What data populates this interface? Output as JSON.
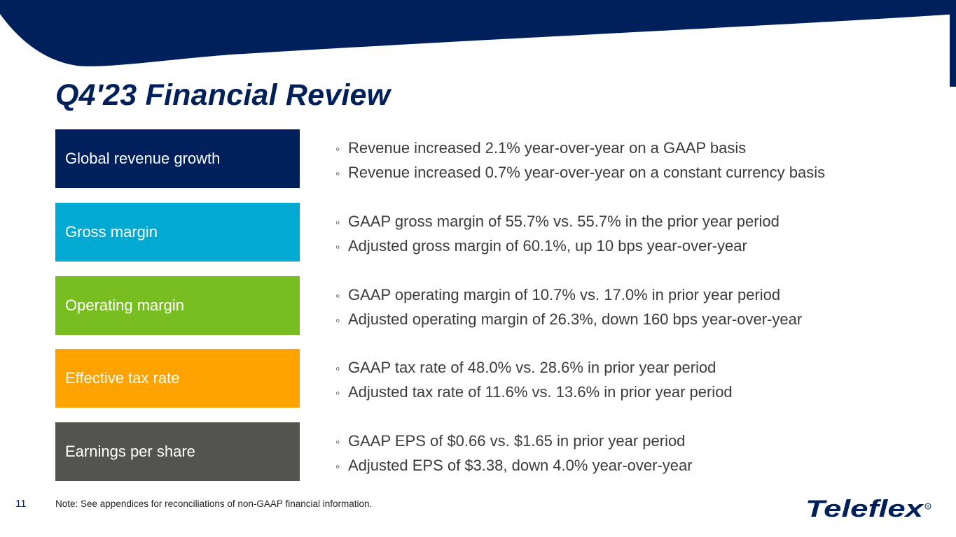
{
  "title": "Q4'23 Financial Review",
  "colors": {
    "navy": "#00205b",
    "cyan": "#00a9d1",
    "green": "#78be20",
    "orange": "#ffa300",
    "gray": "#54544e"
  },
  "rows": [
    {
      "label": "Global revenue growth",
      "color": "#00205b",
      "bullets": [
        "Revenue increased 2.1% year-over-year on a GAAP basis",
        "Revenue increased 0.7% year-over-year on a constant currency basis"
      ]
    },
    {
      "label": "Gross margin",
      "color": "#00a9d1",
      "bullets": [
        "GAAP gross margin of 55.7% vs. 55.7% in the prior year period",
        "Adjusted gross margin of 60.1%, up 10 bps year-over-year"
      ]
    },
    {
      "label": "Operating margin",
      "color": "#78be20",
      "bullets": [
        "GAAP operating margin of 10.7% vs. 17.0% in prior year period",
        "Adjusted operating margin of 26.3%, down 160 bps year-over-year"
      ]
    },
    {
      "label": "Effective tax rate",
      "color": "#ffa300",
      "bullets": [
        "GAAP tax rate of 48.0% vs. 28.6% in prior year period",
        "Adjusted tax rate of 11.6% vs. 13.6% in prior year period"
      ]
    },
    {
      "label": "Earnings per share",
      "color": "#54544e",
      "bullets": [
        "GAAP EPS of $0.66 vs. $1.65 in prior year period",
        "Adjusted EPS of $3.38, down 4.0% year-over-year"
      ]
    }
  ],
  "footer": {
    "page_number": "11",
    "note": "Note: See appendices for reconciliations of non-GAAP financial information.",
    "logo_text": "Teleflex"
  }
}
